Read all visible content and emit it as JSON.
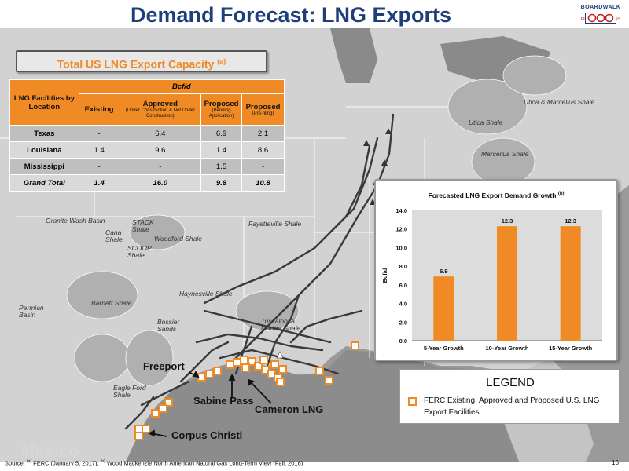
{
  "title": "Demand Forecast: LNG Exports",
  "logo": {
    "name": "BOARDWALK",
    "sub": "PIPELINE PARTNERS"
  },
  "table": {
    "heading": "Total US LNG Export Capacity",
    "heading_note": "(a)",
    "unit": "Bcf/d",
    "col_location": "LNG Facilities by Location",
    "columns": [
      {
        "label": "Existing",
        "sub": ""
      },
      {
        "label": "Approved",
        "sub": "(Under Construction & Not Under Construction)"
      },
      {
        "label": "Proposed",
        "sub": "(Pending Application)"
      },
      {
        "label": "Proposed",
        "sub": "(Pre-filing)"
      }
    ],
    "rows": [
      {
        "name": "Texas",
        "values": [
          "-",
          "6.4",
          "6.9",
          "2.1"
        ]
      },
      {
        "name": "Louisiana",
        "values": [
          "1.4",
          "9.6",
          "1.4",
          "8.6"
        ]
      },
      {
        "name": "Mississippi",
        "values": [
          "-",
          "-",
          "1.5",
          "-"
        ]
      }
    ],
    "total": {
      "name": "Grand Total",
      "values": [
        "1.4",
        "16.0",
        "9.8",
        "10.8"
      ]
    }
  },
  "chart_data": {
    "type": "bar",
    "title": "Forecasted LNG Export Demand Growth",
    "title_note": "(b)",
    "categories": [
      "5-Year Growth",
      "10-Year Growth",
      "15-Year Growth"
    ],
    "values": [
      6.9,
      12.3,
      12.3
    ],
    "data_labels": [
      "6.9",
      "12.3",
      "12.3"
    ],
    "xlabel": "",
    "ylabel": "Bcf/d",
    "ylim": [
      0,
      14
    ],
    "yticks": [
      "0.0",
      "2.0",
      "4.0",
      "6.0",
      "8.0",
      "10.0",
      "12.0",
      "14.0"
    ],
    "grid": false,
    "bar_color": "#f08a24",
    "plot_background": "#dcdcdc"
  },
  "legend": {
    "title": "LEGEND",
    "item": "FERC Existing, Approved and Proposed U.S. LNG Export Facilities",
    "color": "#f08a24"
  },
  "map_labels": {
    "freeport": "Freeport",
    "sabine": "Sabine Pass",
    "cameron": "Cameron LNG",
    "corpus": "Corpus Christi",
    "mexico": "Mexico"
  },
  "shales": {
    "utica_marcellus": "Utica & Marcellus Shale",
    "utica": "Utica Shale",
    "marcellus": "Marcellus Shale",
    "granite": "Granite Wash Basin",
    "stack": "STACK Shale",
    "cana": "Cana Shale",
    "woodford": "Woodford Shale",
    "scoop": "SCOOP Shale",
    "fayetteville": "Fayetteville Shale",
    "haynesville": "Haynesville Shale",
    "barnett": "Barnett Shale",
    "permian": "Permian Basin",
    "bossier": "Bossier Sands",
    "tuscaloosa": "Tuscaloosa Marine Shale",
    "eagleford": "Eagle Ford Shale"
  },
  "footer": {
    "source_prefix": "Source:",
    "note_a": "(a)",
    "source_a": "FERC (January 5, 2017);",
    "note_b": "(b)",
    "source_b": "Wood Mackenzie North American Natural Gas Long-Term View (Fall, 2016)",
    "page": "16"
  }
}
